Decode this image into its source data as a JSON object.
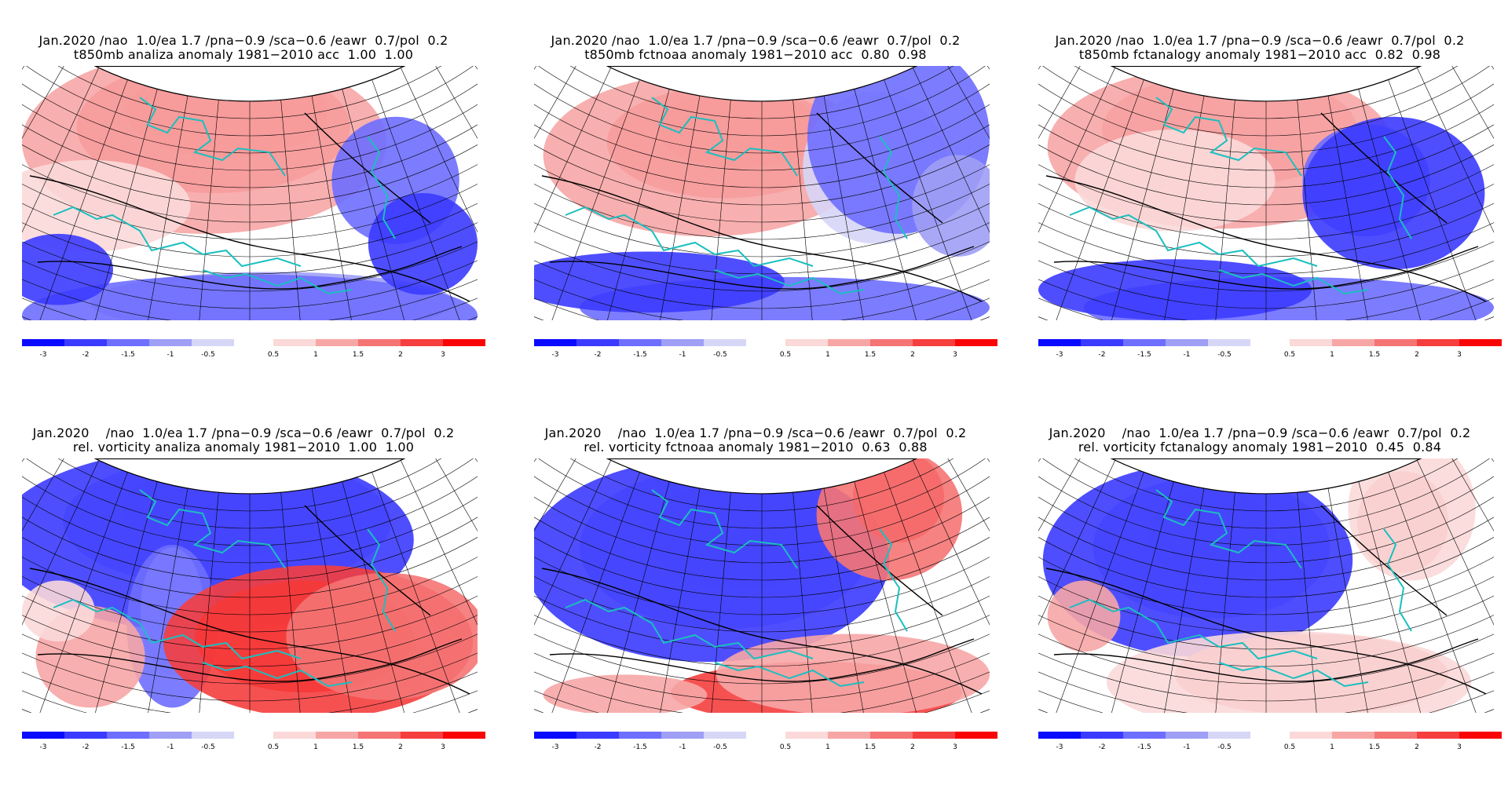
{
  "panels": [
    {
      "line1": "Jan.2020 /nao  1.0/ea 1.7 /pna−0.9 /sca−0.6 /eawr  0.7/pol  0.2",
      "line2": "t850mb analiza anomaly 1981−2010 acc  1.00  1.00",
      "variable": "t850mb",
      "source": "analiza",
      "acc": [
        1.0,
        1.0
      ]
    },
    {
      "line1": "Jan.2020 /nao  1.0/ea 1.7 /pna−0.9 /sca−0.6 /eawr  0.7/pol  0.2",
      "line2": "t850mb fctnoaa anomaly 1981−2010 acc  0.80  0.98",
      "variable": "t850mb",
      "source": "fctnoaa",
      "acc": [
        0.8,
        0.98
      ]
    },
    {
      "line1": "Jan.2020 /nao  1.0/ea 1.7 /pna−0.9 /sca−0.6 /eawr  0.7/pol  0.2",
      "line2": "t850mb fctanalogy anomaly 1981−2010 acc  0.82  0.98",
      "variable": "t850mb",
      "source": "fctanalogy",
      "acc": [
        0.82,
        0.98
      ]
    },
    {
      "line1": "Jan.2020    /nao  1.0/ea 1.7 /pna−0.9 /sca−0.6 /eawr  0.7/pol  0.2",
      "line2": "rel. vorticity analiza anomaly 1981−2010  1.00  1.00",
      "variable": "rel. vorticity",
      "source": "analiza",
      "acc": [
        1.0,
        1.0
      ]
    },
    {
      "line1": "Jan.2020    /nao  1.0/ea 1.7 /pna−0.9 /sca−0.6 /eawr  0.7/pol  0.2",
      "line2": "rel. vorticity fctnoaa anomaly 1981−2010  0.63  0.88",
      "variable": "rel. vorticity",
      "source": "fctnoaa",
      "acc": [
        0.63,
        0.88
      ]
    },
    {
      "line1": "Jan.2020    /nao  1.0/ea 1.7 /pna−0.9 /sca−0.6 /eawr  0.7/pol  0.2",
      "line2": "rel. vorticity fctanalogy anomaly 1981−2010  0.45  0.84",
      "variable": "rel. vorticity",
      "source": "fctanalogy",
      "acc": [
        0.45,
        0.84
      ]
    }
  ],
  "colorbar": {
    "ticks": [
      "-3",
      "-2",
      "-1.5",
      "-1",
      "-0.5",
      "0.5",
      "1",
      "1.5",
      "2",
      "3"
    ],
    "colors_negative": [
      "#0a0aff",
      "#3b3bff",
      "#6e6eff",
      "#9f9ff5",
      "#d6d6f7"
    ],
    "colors_positive": [
      "#fbd9d9",
      "#f7a6a6",
      "#f57474",
      "#f53e3e",
      "#fa0505"
    ]
  },
  "style": {
    "coast_color": "#1bbfbf",
    "grid_color": "#000000",
    "contour_color": "#000000"
  }
}
